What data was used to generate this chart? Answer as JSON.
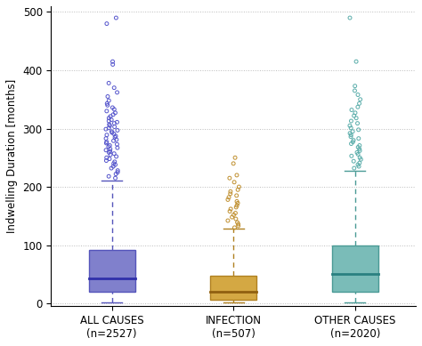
{
  "categories": [
    "ALL CAUSES\n(n=2527)",
    "INFECTION\n(n=507)",
    "OTHER CAUSES\n(n=2020)"
  ],
  "box_colors": [
    "#8080cc",
    "#d4a843",
    "#7abcb8"
  ],
  "edge_colors": [
    "#5555bb",
    "#b08020",
    "#4a9a95"
  ],
  "median_colors": [
    "#3030aa",
    "#906010",
    "#2a8080"
  ],
  "flier_colors": [
    "#5555cc",
    "#c09030",
    "#5aadaa"
  ],
  "ylim": [
    -5,
    510
  ],
  "yticks": [
    0,
    100,
    200,
    300,
    400,
    500
  ],
  "ylabel": "Indwelling Duration [months]",
  "box_stats": [
    {
      "q1": 20,
      "median": 43,
      "q3": 92,
      "whislo": 2,
      "whishi": 210
    },
    {
      "q1": 6,
      "median": 20,
      "q3": 48,
      "whislo": 1,
      "whishi": 128
    },
    {
      "q1": 20,
      "median": 50,
      "q3": 100,
      "whislo": 2,
      "whishi": 228
    }
  ],
  "outliers": [
    [
      215,
      218,
      222,
      225,
      228,
      232,
      235,
      238,
      240,
      243,
      245,
      248,
      250,
      252,
      255,
      257,
      259,
      261,
      263,
      265,
      267,
      269,
      271,
      273,
      275,
      277,
      279,
      281,
      283,
      285,
      287,
      289,
      291,
      293,
      295,
      297,
      299,
      301,
      303,
      305,
      307,
      309,
      311,
      313,
      315,
      318,
      321,
      324,
      327,
      330,
      333,
      336,
      340,
      343,
      348,
      355,
      362,
      370,
      378,
      410,
      415,
      480,
      490
    ],
    [
      130,
      133,
      136,
      139,
      142,
      145,
      148,
      152,
      155,
      158,
      162,
      165,
      168,
      172,
      175,
      178,
      182,
      185,
      188,
      192,
      195,
      200,
      208,
      215,
      220,
      240,
      250
    ],
    [
      232,
      235,
      238,
      241,
      244,
      247,
      250,
      253,
      256,
      259,
      262,
      265,
      268,
      271,
      274,
      277,
      280,
      283,
      286,
      289,
      292,
      295,
      298,
      301,
      305,
      309,
      313,
      318,
      322,
      327,
      332,
      337,
      343,
      350,
      358,
      365,
      373,
      415,
      490
    ]
  ],
  "figsize": [
    4.74,
    3.89
  ],
  "dpi": 100
}
